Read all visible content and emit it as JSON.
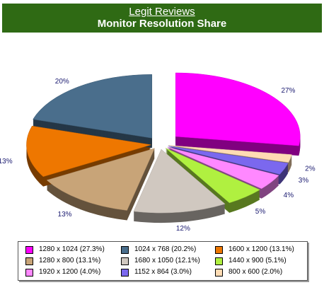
{
  "header": {
    "brand": "Legit Reviews",
    "title": "Monitor Resolution Share"
  },
  "chart_data": {
    "type": "pie",
    "title": "Monitor Resolution Share",
    "slices": [
      {
        "label": "1280 x 1024 (27.3%)",
        "value": 27.3,
        "data_label": "27%",
        "color": "#ff00ff"
      },
      {
        "label": "800 x 600 (2.0%)",
        "value": 2.0,
        "data_label": "2%",
        "color": "#ffdcb4"
      },
      {
        "label": "1152 x 864 (3.0%)",
        "value": 3.0,
        "data_label": "3%",
        "color": "#7b68ee"
      },
      {
        "label": "1920 x 1200 (4.0%)",
        "value": 4.0,
        "data_label": "4%",
        "color": "#ff88ff"
      },
      {
        "label": "1440 x 900 (5.1%)",
        "value": 5.1,
        "data_label": "5%",
        "color": "#b0f040"
      },
      {
        "label": "1680 x 1050 (12.1%)",
        "value": 12.1,
        "data_label": "12%",
        "color": "#d0c8c0"
      },
      {
        "label": "1280 x 800 (13.1%)",
        "value": 13.1,
        "data_label": "13%",
        "color": "#c8a478"
      },
      {
        "label": "1600 x 1200 (13.1%)",
        "value": 13.1,
        "data_label": "13%",
        "color": "#ee7700"
      },
      {
        "label": "1024 x 768 (20.2%)",
        "value": 20.2,
        "data_label": "20%",
        "color": "#4a6e8c"
      }
    ],
    "legend": {
      "position": "bottom",
      "items": [
        {
          "label": "1280 x 1024 (27.3%)",
          "color": "#ff00ff"
        },
        {
          "label": "1024 x 768 (20.2%)",
          "color": "#4a6e8c"
        },
        {
          "label": "1600 x 1200 (13.1%)",
          "color": "#ee7700"
        },
        {
          "label": "1280 x 800 (13.1%)",
          "color": "#c8a478"
        },
        {
          "label": "1680 x 1050 (12.1%)",
          "color": "#d0c8c0"
        },
        {
          "label": "1440 x 900 (5.1%)",
          "color": "#b0f040"
        },
        {
          "label": "1920 x 1200 (4.0%)",
          "color": "#ff88ff"
        },
        {
          "label": "1152 x 864 (3.0%)",
          "color": "#7b68ee"
        },
        {
          "label": "800 x 600 (2.0%)",
          "color": "#ffdcb4"
        }
      ]
    },
    "label_color": "#1a1a70",
    "header_color": "#2f6a14"
  }
}
